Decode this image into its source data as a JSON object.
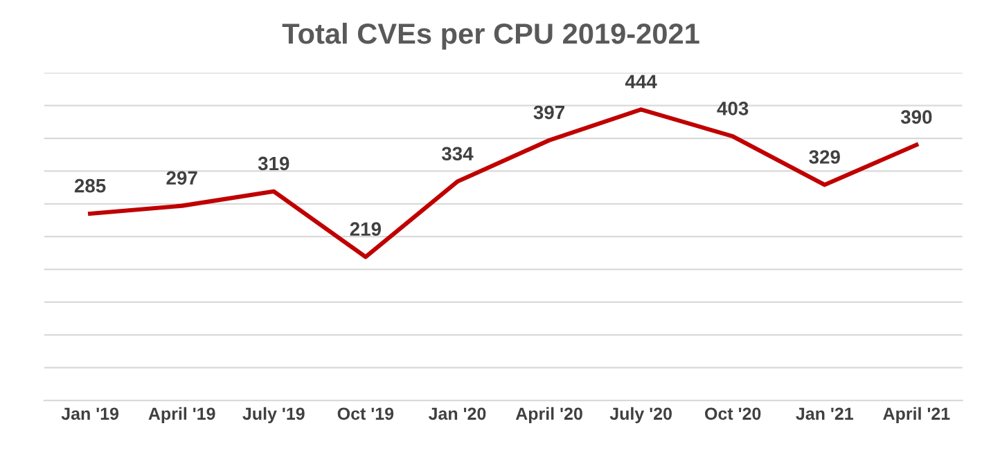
{
  "chart_data": {
    "type": "line",
    "title": "Total CVEs per CPU 2019-2021",
    "categories": [
      "Jan '19",
      "April '19",
      "July '19",
      "Oct '19",
      "Jan '20",
      "April '20",
      "July '20",
      "Oct '20",
      "Jan '21",
      "April '21"
    ],
    "series": [
      {
        "color": "#c00000",
        "values": [
          285,
          297,
          319,
          219,
          334,
          397,
          444,
          403,
          329,
          390
        ]
      }
    ],
    "data_labels": true,
    "ylim": [
      0,
      500
    ],
    "yticks": [
      {
        "value": 0,
        "label": null
      },
      {
        "value": 50,
        "label": null
      },
      {
        "value": 100,
        "label": null
      },
      {
        "value": 150,
        "label": null
      },
      {
        "value": 200,
        "label": null
      },
      {
        "value": 250,
        "label": null
      },
      {
        "value": 300,
        "label": null
      },
      {
        "value": 350,
        "label": null
      },
      {
        "value": 400,
        "label": null
      },
      {
        "value": 450,
        "label": null
      },
      {
        "value": 500,
        "label": null
      }
    ],
    "tick_labels": "x",
    "grid": "y",
    "marker": "none",
    "line_style": "solid"
  }
}
